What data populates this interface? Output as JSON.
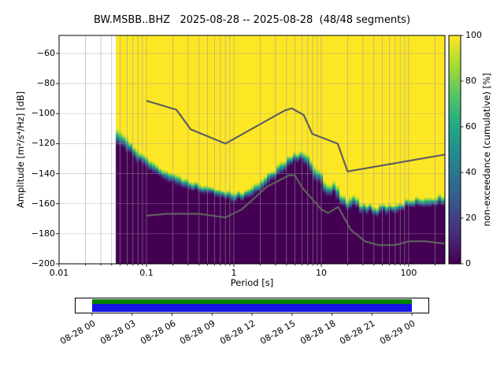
{
  "figure": {
    "background": "#ffffff"
  },
  "chart_data": {
    "type": "heatmap",
    "title": "BW.MSBB..BHZ   2025-08-28 -- 2025-08-28  (48/48 segments)",
    "station_id": "BW.MSBB..BHZ",
    "date_range": "2025-08-28 -- 2025-08-28",
    "segments": "48/48 segments",
    "xlabel": "Period [s]",
    "ylabel": "Amplitude [m²/s⁴/Hz] [dB]",
    "x_scale": "log",
    "xlim": [
      0.01,
      260
    ],
    "ylim": [
      -200,
      -48
    ],
    "grid": true,
    "grid_color": "#9a9a9a",
    "x_ticks": [
      {
        "v": 0.01,
        "label": "0.01"
      },
      {
        "v": 0.1,
        "label": "0.1"
      },
      {
        "v": 1,
        "label": "1"
      },
      {
        "v": 10,
        "label": "10"
      },
      {
        "v": 100,
        "label": "100"
      }
    ],
    "y_ticks": [
      {
        "v": -60,
        "label": "−60"
      },
      {
        "v": -80,
        "label": "−80"
      },
      {
        "v": -100,
        "label": "−100"
      },
      {
        "v": -120,
        "label": "−120"
      },
      {
        "v": -140,
        "label": "−140"
      },
      {
        "v": -160,
        "label": "−160"
      },
      {
        "v": -180,
        "label": "−180"
      },
      {
        "v": -200,
        "label": "−200"
      }
    ],
    "colorbar": {
      "label": "non-exceedance (cumulative) [%]",
      "lim": [
        0,
        100
      ],
      "ticks": [
        {
          "v": 0,
          "label": "0"
        },
        {
          "v": 20,
          "label": "20"
        },
        {
          "v": 40,
          "label": "40"
        },
        {
          "v": 60,
          "label": "60"
        },
        {
          "v": 80,
          "label": "80"
        },
        {
          "v": 100,
          "label": "100"
        }
      ]
    },
    "colormap_stops": [
      "#440154",
      "#472c7a",
      "#3b518b",
      "#2c718e",
      "#21908d",
      "#27ad81",
      "#5cc863",
      "#aadc32",
      "#fde725"
    ],
    "distribution": {
      "start_period": 0.046,
      "bins_per_octave": 8,
      "db_bin_width": 1,
      "points": [
        [
          0.045,
          -114,
          13
        ],
        [
          0.06,
          -121,
          11
        ],
        [
          0.08,
          -128,
          10
        ],
        [
          0.1,
          -133,
          9
        ],
        [
          0.14,
          -139,
          8
        ],
        [
          0.2,
          -143,
          7.5
        ],
        [
          0.3,
          -147,
          7
        ],
        [
          0.45,
          -150,
          7
        ],
        [
          0.65,
          -153,
          7
        ],
        [
          0.9,
          -155,
          7
        ],
        [
          1.2,
          -155,
          7
        ],
        [
          1.6,
          -152,
          8
        ],
        [
          2.2,
          -146,
          8
        ],
        [
          3.0,
          -140,
          8.5
        ],
        [
          4.0,
          -134,
          9
        ],
        [
          5.0,
          -129,
          9
        ],
        [
          6.0,
          -129,
          9
        ],
        [
          7.0,
          -132,
          10
        ],
        [
          8.5,
          -138,
          11
        ],
        [
          10,
          -143,
          12
        ],
        [
          12,
          -149,
          12
        ],
        [
          15,
          -154,
          11
        ],
        [
          20,
          -159,
          10
        ],
        [
          27,
          -163,
          9
        ],
        [
          35,
          -165,
          8
        ],
        [
          50,
          -164,
          8
        ],
        [
          70,
          -162,
          7.5
        ],
        [
          100,
          -160,
          7
        ],
        [
          150,
          -158.5,
          7
        ],
        [
          260,
          -157,
          7
        ]
      ],
      "jitter": [
        [
          0.045,
          1.0
        ],
        [
          3,
          1.0
        ],
        [
          6,
          2.0
        ],
        [
          9,
          3.5
        ],
        [
          20,
          4.0
        ],
        [
          35,
          3.0
        ],
        [
          60,
          2.0
        ],
        [
          260,
          1.2
        ]
      ]
    },
    "noise_models": {
      "color": "#5f5f5f",
      "nhnm": [
        [
          0.1,
          -91.5
        ],
        [
          0.22,
          -97.4
        ],
        [
          0.32,
          -110.5
        ],
        [
          0.8,
          -120.0
        ],
        [
          3.8,
          -98.0
        ],
        [
          4.6,
          -96.5
        ],
        [
          6.3,
          -101.0
        ],
        [
          7.9,
          -113.5
        ],
        [
          15.4,
          -120.0
        ],
        [
          20.0,
          -138.5
        ],
        [
          260,
          -127.3
        ]
      ],
      "nlnm": [
        [
          0.1,
          -168.0
        ],
        [
          0.17,
          -166.7
        ],
        [
          0.4,
          -166.7
        ],
        [
          0.8,
          -169.2
        ],
        [
          1.24,
          -163.7
        ],
        [
          2.4,
          -148.6
        ],
        [
          4.3,
          -141.1
        ],
        [
          5.0,
          -141.1
        ],
        [
          6.0,
          -149.0
        ],
        [
          10.0,
          -163.8
        ],
        [
          12.0,
          -166.2
        ],
        [
          15.6,
          -162.1
        ],
        [
          21.9,
          -177.5
        ],
        [
          31.6,
          -185.0
        ],
        [
          45.0,
          -187.5
        ],
        [
          70.0,
          -187.5
        ],
        [
          101.0,
          -185.0
        ],
        [
          154.0,
          -185.0
        ],
        [
          260,
          -186.6
        ]
      ]
    },
    "coverage": {
      "labels": [
        "08-28 00",
        "08-28 03",
        "08-28 06",
        "08-28 09",
        "08-28 12",
        "08-28 15",
        "08-28 18",
        "08-28 21",
        "08-29 00"
      ],
      "green": "#008000",
      "blue": "#1414e6"
    }
  }
}
